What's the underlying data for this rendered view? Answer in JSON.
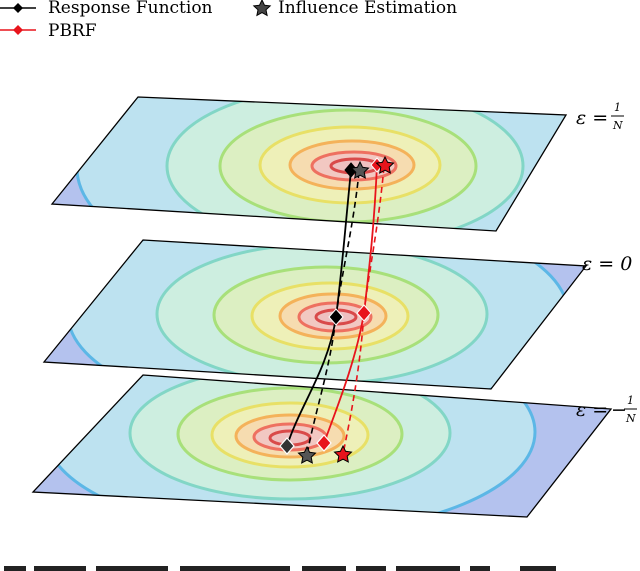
{
  "legend": {
    "response_function": "Response Function",
    "influence_estimation": "Influence Estimation",
    "pbrf": "PBRF"
  },
  "layers": [
    {
      "id": "top",
      "epsilon_label": "ε =",
      "epsilon_sign": "",
      "epsilon_num": "1",
      "epsilon_den": "N",
      "epsilon_value": ""
    },
    {
      "id": "middle",
      "epsilon_label": "ε = 0",
      "epsilon_sign": "",
      "epsilon_num": "",
      "epsilon_den": "",
      "epsilon_value": ""
    },
    {
      "id": "bottom",
      "epsilon_label": "ε =",
      "epsilon_sign": "−",
      "epsilon_num": "1",
      "epsilon_den": "N",
      "epsilon_value": ""
    }
  ],
  "colors": {
    "response_function": "#000000",
    "pbrf": "#e8141c",
    "contours": [
      "#4a5fd0",
      "#5bb6e8",
      "#7fd6c4",
      "#a8e07a",
      "#e8e066",
      "#f4b25a",
      "#ee7060",
      "#d94a4a"
    ]
  },
  "icons": {
    "diamond": "diamond-marker",
    "star": "star-marker"
  }
}
